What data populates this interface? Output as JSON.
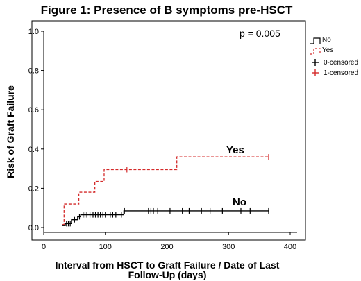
{
  "chart_data": {
    "type": "line",
    "title": "Figure 1: Presence of B symptoms pre-HSCT",
    "xlabel_lines": [
      "Interval from HSCT to Graft Failure / Date of Last",
      "Follow-Up (days)"
    ],
    "ylabel": "Risk of Graft Failure",
    "xlim": [
      0,
      400
    ],
    "ylim": [
      0,
      1.0
    ],
    "xticks": [
      0,
      100,
      200,
      300,
      400
    ],
    "yticks": [
      0.0,
      0.2,
      0.4,
      0.6,
      0.8,
      1.0
    ],
    "ytick_labels": [
      "0.0",
      "0.2",
      "0.4",
      "0.6",
      "0.8",
      "1.0"
    ],
    "grid": false,
    "step": true,
    "annotation": "p = 0.005",
    "legend_position": "right-outside-top",
    "legend": [
      "No",
      "Yes",
      "0-censored",
      "1-censored"
    ],
    "series": [
      {
        "name": "No",
        "color": "#000000",
        "dash": "solid",
        "label": "No",
        "steps": [
          [
            30,
            0.01
          ],
          [
            35,
            0.02
          ],
          [
            45,
            0.04
          ],
          [
            55,
            0.055
          ],
          [
            60,
            0.065
          ],
          [
            130,
            0.085
          ],
          [
            365,
            0.085
          ]
        ],
        "censored": [
          37,
          40,
          43,
          50,
          58,
          64,
          67,
          70,
          75,
          80,
          84,
          88,
          92,
          96,
          100,
          108,
          112,
          117,
          126,
          131,
          170,
          174,
          178,
          185,
          205,
          225,
          236,
          256,
          270,
          290,
          320,
          335,
          365
        ]
      },
      {
        "name": "Yes",
        "color": "#d42a2a",
        "dash": "dashed",
        "label": "Yes",
        "steps": [
          [
            30,
            0.015
          ],
          [
            33,
            0.12
          ],
          [
            57,
            0.18
          ],
          [
            83,
            0.235
          ],
          [
            98,
            0.295
          ],
          [
            216,
            0.36
          ],
          [
            365,
            0.36
          ]
        ],
        "censored": [
          135,
          365
        ]
      }
    ]
  }
}
